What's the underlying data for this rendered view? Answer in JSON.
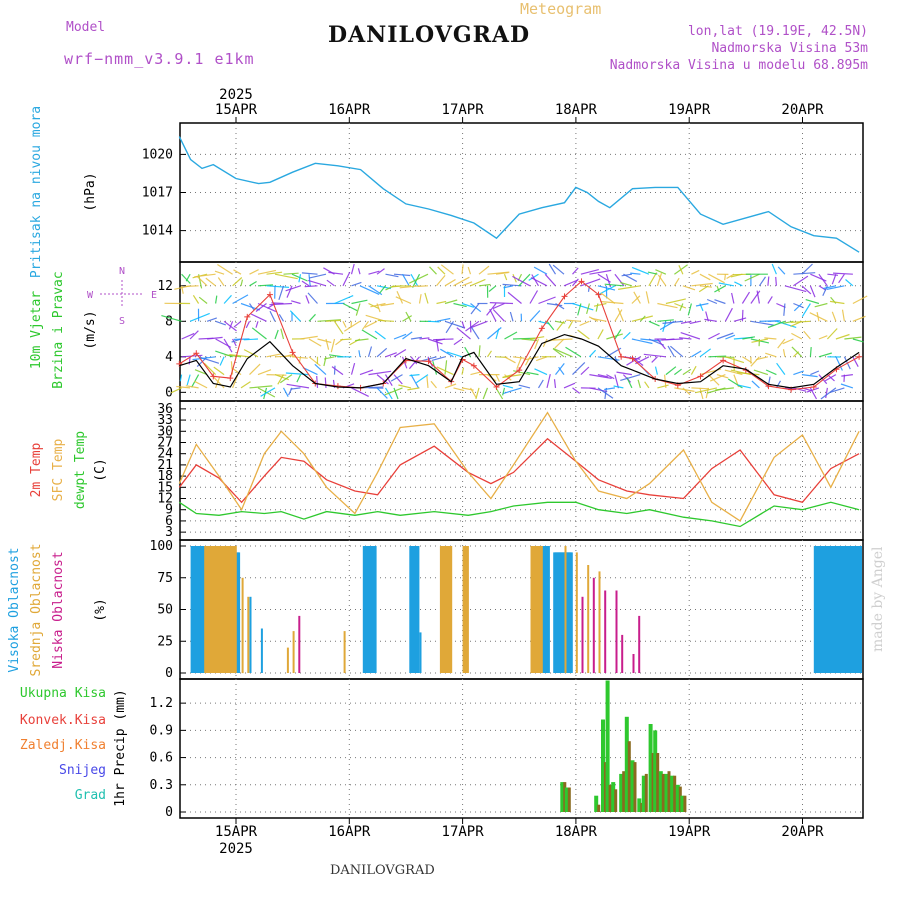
{
  "header": {
    "model_label": "Model",
    "model_name": "wrf−nmm_v3.9.1 e1km",
    "title": "DANILOVGRAD",
    "subtitle": "Meteogram",
    "coords": "lon,lat (19.19E, 42.5N)",
    "elevation": "Nadmorska Visina 53m",
    "model_elevation": "Nadmorska Visina u modelu 68.895m",
    "watermark": "made by Angel",
    "footer": "DANILOVGRAD"
  },
  "colors": {
    "pressure": "#2aa8e0",
    "temp_2m": "#e8403a",
    "sfc_temp": "#e8b048",
    "dewpoint": "#2ec82e",
    "high_cloud": "#1ea0e0",
    "mid_cloud": "#e0a838",
    "low_cloud": "#c81e8c",
    "total_precip": "#2ec82e",
    "conv_precip": "#e8403a",
    "frozen_precip": "#f08030",
    "snow": "#4848e8",
    "hail": "#20c0b0",
    "wind_speed": "#000000",
    "gust": "#e8403a",
    "axis_label_black": "#000000"
  },
  "chart_data": [
    {
      "type": "line",
      "panel": "pressure",
      "ylabel": "Pritisak na nivou mora",
      "unit": "(hPa)",
      "yticks": [
        1014,
        1017,
        1020
      ],
      "ylim": [
        1012,
        1022
      ],
      "top_ticks": [
        "15APR",
        "16APR",
        "17APR",
        "18APR",
        "19APR",
        "20APR"
      ],
      "top_year": "2025",
      "x": [
        0,
        0.1,
        0.2,
        0.3,
        0.5,
        0.7,
        0.8,
        1.0,
        1.2,
        1.4,
        1.6,
        1.8,
        2.0,
        2.2,
        2.4,
        2.6,
        2.8,
        3.0,
        3.2,
        3.4,
        3.5,
        3.6,
        3.7,
        3.8,
        4.0,
        4.2,
        4.4,
        4.6,
        4.8,
        5.0,
        5.2,
        5.4,
        5.6,
        5.8,
        6.0
      ],
      "values": [
        1021.4,
        1019.6,
        1018.9,
        1019.2,
        1018.1,
        1017.7,
        1017.8,
        1018.6,
        1019.3,
        1019.1,
        1018.8,
        1017.3,
        1016.1,
        1015.7,
        1015.2,
        1014.6,
        1013.4,
        1015.3,
        1015.8,
        1016.2,
        1017.4,
        1017.0,
        1016.3,
        1015.8,
        1017.3,
        1017.4,
        1017.4,
        1015.3,
        1014.5,
        1015.0,
        1015.5,
        1014.3,
        1013.6,
        1013.4,
        1012.3
      ]
    },
    {
      "type": "line",
      "panel": "wind",
      "ylabel": "10m Vjetar",
      "ylabel2": "Brzina i Pravac",
      "unit": "(m/s)",
      "compass": [
        "N",
        "W",
        "E",
        "S"
      ],
      "yticks": [
        0,
        4,
        8,
        12
      ],
      "ylim": [
        -0.3,
        14
      ],
      "x": [
        0,
        0.15,
        0.3,
        0.45,
        0.6,
        0.8,
        1.0,
        1.2,
        1.4,
        1.6,
        1.8,
        2.0,
        2.2,
        2.4,
        2.5,
        2.6,
        2.8,
        3.0,
        3.2,
        3.4,
        3.55,
        3.7,
        3.9,
        4.0,
        4.2,
        4.4,
        4.6,
        4.8,
        5.0,
        5.2,
        5.4,
        5.6,
        5.8,
        6.0
      ],
      "values": [
        3.0,
        3.6,
        1.0,
        0.6,
        3.8,
        5.7,
        3.0,
        1.0,
        0.6,
        0.5,
        1.0,
        3.8,
        3.0,
        1.2,
        4.0,
        4.5,
        0.9,
        1.2,
        5.5,
        6.5,
        6.0,
        5.2,
        3.0,
        2.5,
        1.5,
        1.0,
        1.2,
        3.0,
        2.6,
        0.9,
        0.5,
        0.9,
        2.8,
        4.5
      ],
      "gust_values": [
        3.2,
        4.4,
        1.8,
        1.6,
        8.5,
        11.0,
        4.5,
        1.0,
        0.7,
        0.5,
        1.0,
        3.6,
        3.5,
        1.2,
        3.7,
        3.0,
        0.6,
        2.5,
        7.2,
        10.8,
        12.5,
        11.0,
        4.0,
        3.8,
        1.5,
        0.8,
        1.8,
        3.6,
        2.5,
        0.7,
        0.3,
        0.6,
        2.6,
        4.0
      ]
    },
    {
      "type": "line",
      "panel": "temperature",
      "ylabels": [
        "2m Temp",
        "SFC Temp",
        "dewpt Temp"
      ],
      "unit": "(C)",
      "yticks": [
        3,
        6,
        9,
        12,
        15,
        18,
        21,
        24,
        27,
        30,
        33,
        36
      ],
      "ylim": [
        2.5,
        36.5
      ],
      "x": [
        0,
        0.15,
        0.35,
        0.55,
        0.75,
        0.9,
        1.1,
        1.3,
        1.55,
        1.75,
        1.95,
        2.25,
        2.55,
        2.75,
        2.95,
        3.25,
        3.5,
        3.7,
        3.95,
        4.15,
        4.45,
        4.7,
        4.95,
        5.25,
        5.5,
        5.75,
        6.0
      ],
      "series": [
        {
          "name": "2m Temp",
          "values": [
            15,
            21,
            17.5,
            11,
            18,
            23,
            22,
            17,
            14,
            13,
            21,
            26,
            19,
            16,
            19,
            28,
            22,
            17,
            14,
            13,
            12,
            20,
            25,
            13,
            11,
            20,
            24
          ]
        },
        {
          "name": "SFC Temp",
          "values": [
            16,
            26.5,
            18,
            9,
            24,
            30,
            24,
            15,
            8,
            19,
            31,
            32,
            19,
            12,
            21,
            35,
            22,
            14,
            12,
            16,
            25,
            11,
            6,
            23,
            29,
            15,
            30
          ]
        },
        {
          "name": "dewpt Temp",
          "values": [
            11,
            8,
            7.5,
            8.5,
            8,
            8.5,
            6.5,
            8.5,
            7.5,
            8.5,
            7.5,
            8.5,
            7.5,
            8.5,
            10,
            11,
            11,
            9,
            8,
            9,
            7,
            6,
            4.5,
            10,
            9,
            11,
            9
          ]
        }
      ]
    },
    {
      "type": "bar",
      "panel": "clouds",
      "ylabels": [
        "Visoka Oblacnost",
        "Srednja Oblacnost",
        "Niska Oblacnost"
      ],
      "unit": "(%)",
      "yticks": [
        0,
        25,
        50,
        75,
        100
      ],
      "ylim": [
        0,
        100
      ],
      "series": [
        {
          "name": "Visoka Oblacnost",
          "intervals": [
            [
              0.1,
              0.2,
              100
            ],
            [
              0.21,
              0.3,
              100
            ],
            [
              0.5,
              0.52,
              95
            ],
            [
              1.62,
              1.72,
              100
            ],
            [
              2.03,
              2.1,
              100
            ],
            [
              3.15,
              3.25,
              100
            ],
            [
              3.3,
              3.45,
              95
            ],
            [
              5.6,
              6.0,
              100
            ]
          ],
          "spikes": [
            [
              0.62,
              60
            ],
            [
              0.72,
              35
            ],
            [
              2.05,
              100
            ],
            [
              2.12,
              32
            ],
            [
              3.2,
              60
            ],
            [
              3.32,
              80
            ]
          ]
        },
        {
          "name": "Srednja Oblacnost",
          "intervals": [
            [
              0.22,
              0.5,
              100
            ],
            [
              2.3,
              2.4,
              100
            ],
            [
              2.5,
              2.55,
              100
            ],
            [
              3.1,
              3.2,
              100
            ]
          ],
          "spikes": [
            [
              0.55,
              75
            ],
            [
              0.6,
              60
            ],
            [
              0.95,
              20
            ],
            [
              1.0,
              33
            ],
            [
              1.45,
              33
            ],
            [
              3.4,
              100
            ],
            [
              3.5,
              95
            ],
            [
              3.6,
              85
            ],
            [
              3.7,
              80
            ]
          ]
        },
        {
          "name": "Niska Oblacnost",
          "intervals": [],
          "spikes": [
            [
              1.05,
              45
            ],
            [
              3.55,
              60
            ],
            [
              3.65,
              75
            ],
            [
              3.75,
              65
            ],
            [
              3.85,
              65
            ],
            [
              3.9,
              30
            ],
            [
              4.0,
              15
            ],
            [
              4.05,
              45
            ]
          ]
        }
      ]
    },
    {
      "type": "bar",
      "panel": "precipitation",
      "ylabels": [
        "Ukupna Kisa",
        "Konvek.Kisa",
        "Zaledj.Kisa",
        "Snijeg",
        "Grad"
      ],
      "ylabel": "1hr Precip (mm)",
      "yticks": [
        0,
        0.3,
        0.6,
        0.9,
        1.2
      ],
      "ylim": [
        0,
        1.4
      ],
      "bottom_ticks": [
        "15APR",
        "16APR",
        "17APR",
        "18APR",
        "19APR",
        "20APR"
      ],
      "bottom_year": "2025",
      "x": [
        3.38,
        3.42,
        3.68,
        3.74,
        3.78,
        3.83,
        3.9,
        3.95,
        4.0,
        4.06,
        4.1,
        4.16,
        4.2,
        4.25,
        4.3,
        4.35,
        4.4,
        4.44
      ],
      "total": [
        0.33,
        0.27,
        0.18,
        1.02,
        1.45,
        0.33,
        0.42,
        1.05,
        0.57,
        0.15,
        0.4,
        0.97,
        0.9,
        0.45,
        0.42,
        0.4,
        0.3,
        0.18
      ],
      "convective": [
        0.33,
        0.27,
        0.08,
        0.55,
        0.3,
        0.25,
        0.45,
        0.78,
        0.55,
        0.1,
        0.42,
        0.65,
        0.65,
        0.42,
        0.45,
        0.4,
        0.28,
        0.18
      ]
    }
  ]
}
